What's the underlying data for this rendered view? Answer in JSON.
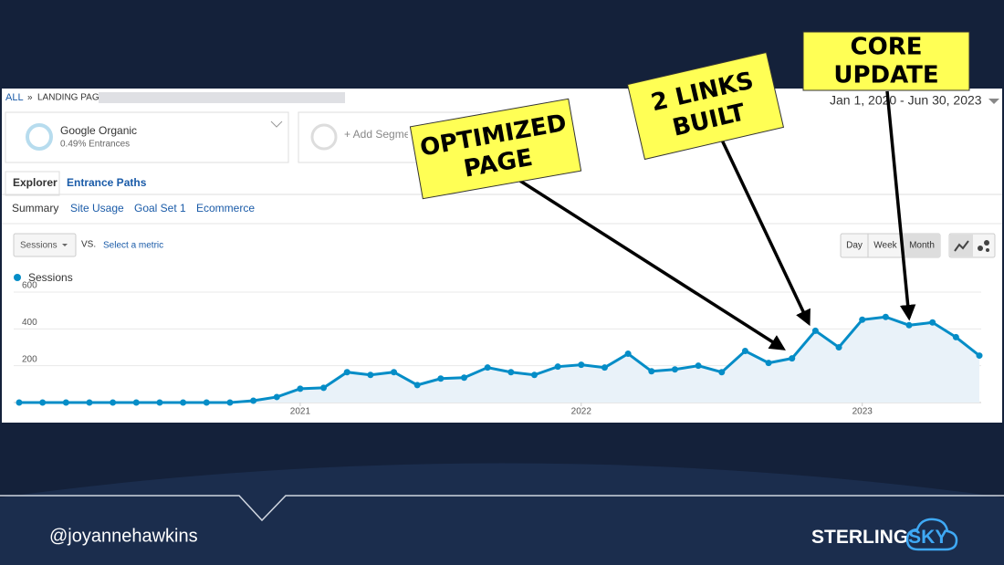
{
  "breadcrumb": {
    "root": "ALL",
    "separator": "»",
    "page": "LANDING PAG"
  },
  "date_range": "Jan 1, 2020 - Jun 30, 2023",
  "segments": [
    {
      "name": "Google Organic",
      "detail": "0.49% Entrances"
    },
    {
      "name": "+ Add Segment"
    }
  ],
  "tabs": [
    "Explorer",
    "Entrance Paths"
  ],
  "subtabs": [
    "Summary",
    "Site Usage",
    "Goal Set 1",
    "Ecommerce"
  ],
  "metric": "Sessions",
  "vs": "VS.",
  "select_metric": "Select a metric",
  "granularity": [
    "Day",
    "Week",
    "Month"
  ],
  "chart_data": {
    "type": "line",
    "categories": [
      null,
      null,
      null,
      null,
      null,
      null,
      null,
      null,
      null,
      null,
      null,
      null,
      "2021",
      null,
      null,
      null,
      null,
      null,
      null,
      null,
      null,
      null,
      null,
      null,
      "2022",
      null,
      null,
      null,
      null,
      null,
      null,
      null,
      null,
      null,
      null,
      null,
      "2023",
      null,
      null,
      null,
      null,
      null
    ],
    "series": [
      {
        "name": "Sessions",
        "color": "#058dc7",
        "values": [
          0,
          0,
          0,
          0,
          0,
          0,
          0,
          0,
          0,
          0,
          10,
          30,
          75,
          80,
          165,
          150,
          165,
          95,
          130,
          135,
          190,
          165,
          150,
          195,
          205,
          190,
          265,
          170,
          180,
          200,
          165,
          280,
          215,
          240,
          390,
          300,
          450,
          465,
          420,
          435,
          355,
          255
        ]
      }
    ],
    "ylim": [
      0,
      600
    ],
    "yticks": [
      200,
      400,
      600
    ],
    "grid": true
  },
  "callouts": [
    {
      "lines": [
        "OPTIMIZED",
        "PAGE"
      ]
    },
    {
      "lines": [
        "2 LINKS",
        "BUILT"
      ]
    },
    {
      "lines": [
        "CORE",
        "UPDATE"
      ]
    }
  ],
  "footer": {
    "handle": "@joyannehawkins",
    "logo": [
      "STERLING",
      "SKY"
    ]
  }
}
